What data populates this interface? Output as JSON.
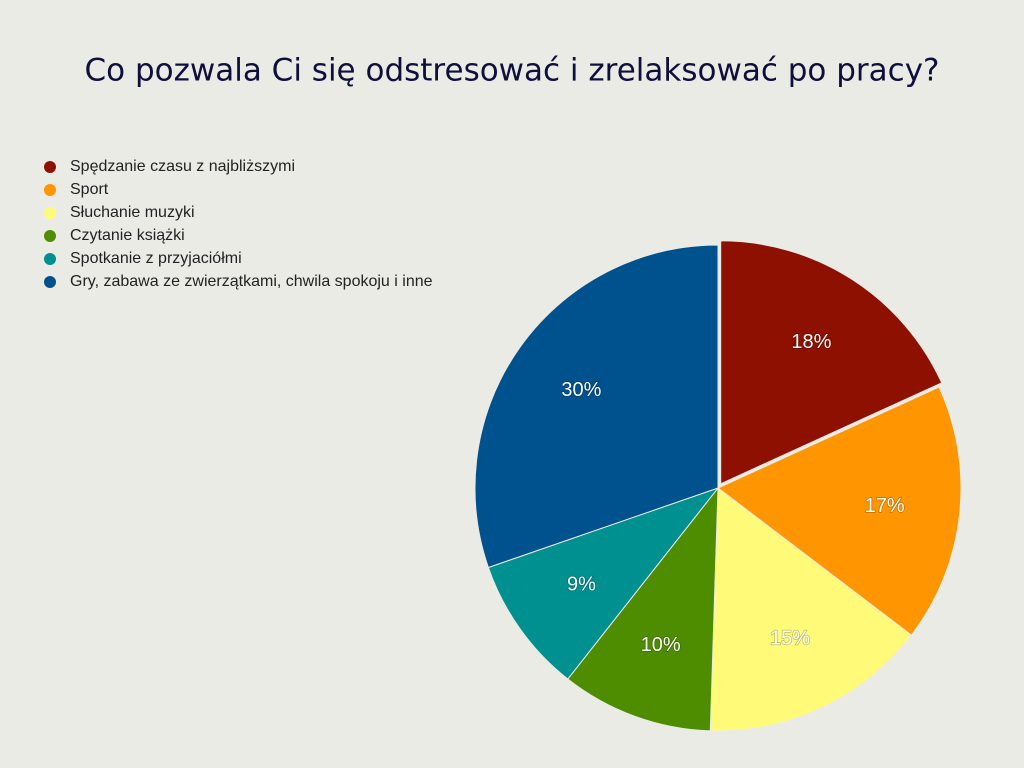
{
  "chart_data": {
    "type": "pie",
    "title": "Co pozwala Ci się odstresować i zrelaksować po pracy?",
    "categories": [
      "Spędzanie czasu z najbliższymi",
      "Sport",
      "Słuchanie muzyki",
      "Czytanie książki",
      "Spotkanie z przyjaciółmi",
      "Gry, zabawa ze zwierzątkami, chwila spokoju i inne"
    ],
    "values": [
      18,
      17,
      15,
      10,
      9,
      30
    ],
    "value_labels": [
      "18%",
      "17%",
      "15%",
      "10%",
      "9%",
      "30%"
    ],
    "colors": [
      "#8e1000",
      "#ff9500",
      "#fffb78",
      "#4e8c00",
      "#00908f",
      "#00528f"
    ],
    "legend": "top-left"
  }
}
